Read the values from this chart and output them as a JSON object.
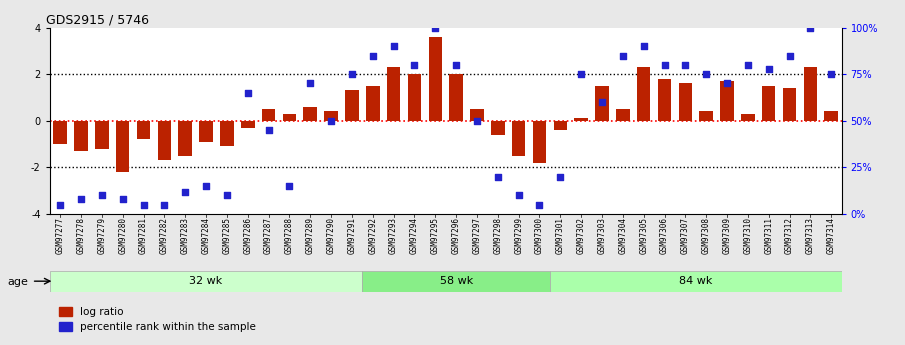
{
  "title": "GDS2915 / 5746",
  "samples": [
    "GSM97277",
    "GSM97278",
    "GSM97279",
    "GSM97280",
    "GSM97281",
    "GSM97282",
    "GSM97283",
    "GSM97284",
    "GSM97285",
    "GSM97286",
    "GSM97287",
    "GSM97288",
    "GSM97289",
    "GSM97290",
    "GSM97291",
    "GSM97292",
    "GSM97293",
    "GSM97294",
    "GSM97295",
    "GSM97296",
    "GSM97297",
    "GSM97298",
    "GSM97299",
    "GSM97300",
    "GSM97301",
    "GSM97302",
    "GSM97303",
    "GSM97304",
    "GSM97305",
    "GSM97306",
    "GSM97307",
    "GSM97308",
    "GSM97309",
    "GSM97310",
    "GSM97311",
    "GSM97312",
    "GSM97313",
    "GSM97314"
  ],
  "log_ratio": [
    -1.0,
    -1.3,
    -1.2,
    -2.2,
    -0.8,
    -1.7,
    -1.5,
    -0.9,
    -1.1,
    -0.3,
    0.5,
    0.3,
    0.6,
    0.4,
    1.3,
    1.5,
    2.3,
    2.0,
    3.6,
    2.0,
    0.5,
    -0.6,
    -1.5,
    -1.8,
    -0.4,
    0.1,
    1.5,
    0.5,
    2.3,
    1.8,
    1.6,
    0.4,
    1.7,
    0.3,
    1.5,
    1.4,
    2.3,
    0.4
  ],
  "percentile": [
    5,
    8,
    10,
    8,
    5,
    5,
    12,
    15,
    10,
    65,
    45,
    15,
    70,
    50,
    75,
    85,
    90,
    80,
    100,
    80,
    50,
    20,
    10,
    5,
    20,
    75,
    60,
    85,
    90,
    80,
    80,
    75,
    70,
    80,
    78,
    85,
    100,
    75
  ],
  "groups": [
    {
      "label": "32 wk",
      "start": 0,
      "end": 15,
      "color": "#ccffcc"
    },
    {
      "label": "58 wk",
      "start": 15,
      "end": 24,
      "color": "#88ee88"
    },
    {
      "label": "84 wk",
      "start": 24,
      "end": 38,
      "color": "#aaffaa"
    }
  ],
  "bar_color": "#bb2200",
  "point_color": "#2222cc",
  "ylim": [
    -4,
    4
  ],
  "right_ylim": [
    0,
    100
  ],
  "dotted_lines": [
    2.0,
    0.0,
    -2.0
  ],
  "background_color": "#e8e8e8",
  "plot_bg": "#ffffff",
  "age_label": "age"
}
